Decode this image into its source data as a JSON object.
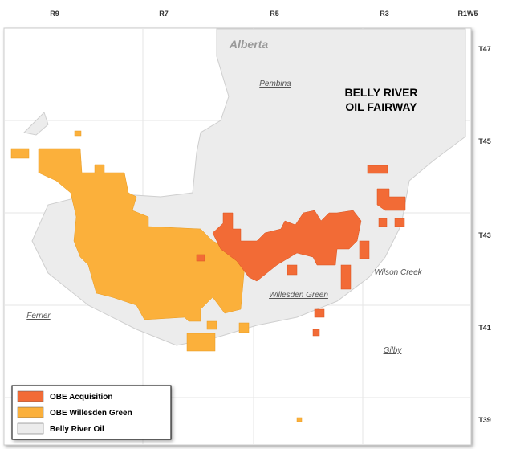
{
  "ranges": [
    "R9",
    "R7",
    "R5",
    "R3",
    "R1W5"
  ],
  "townships": [
    "T47",
    "T45",
    "T43",
    "T41",
    "T39"
  ],
  "places": {
    "province": "Alberta",
    "towns": [
      "Pembina",
      "Wilson Creek",
      "Willesden Green",
      "Ferrier",
      "Gilby"
    ]
  },
  "title": [
    "BELLY RIVER",
    "OIL FAIRWAY"
  ],
  "legend": [
    {
      "label": "OBE Acquisition",
      "color": "#f26b36"
    },
    {
      "label": "OBE Willesden Green",
      "color": "#fbb03b"
    },
    {
      "label": "Belly River Oil",
      "color": "#ececec"
    }
  ]
}
